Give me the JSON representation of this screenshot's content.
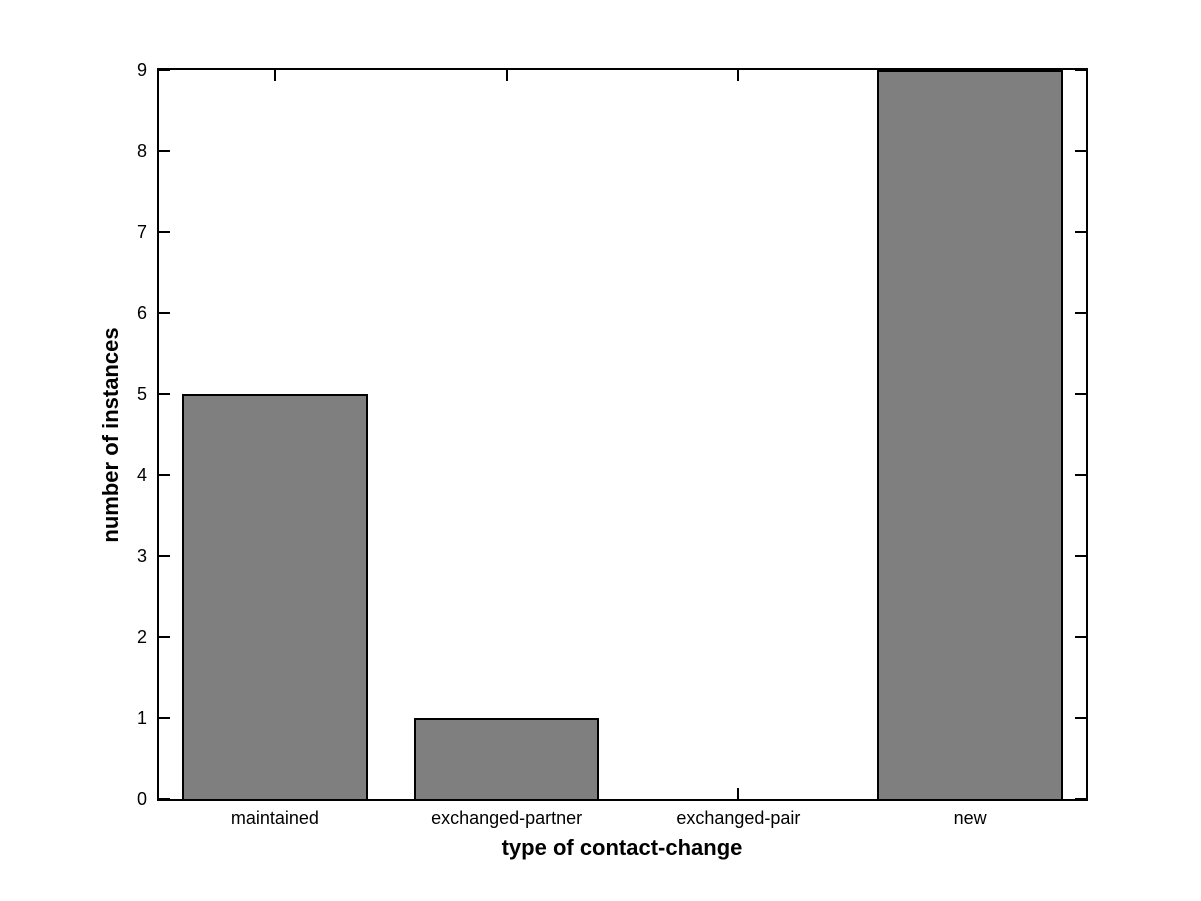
{
  "chart_data": {
    "type": "bar",
    "categories": [
      "maintained",
      "exchanged-partner",
      "exchanged-pair",
      "new"
    ],
    "values": [
      5,
      1,
      0,
      9
    ],
    "title": "",
    "xlabel": "type of contact-change",
    "ylabel": "number of instances",
    "ylim": [
      0,
      9
    ],
    "yticks": [
      0,
      1,
      2,
      3,
      4,
      5,
      6,
      7,
      8,
      9
    ],
    "bar_width_fraction": 0.8,
    "grid": false,
    "legend": null,
    "tick_direction": "in",
    "colors": {
      "bar_fill": "#7f7f7f",
      "bar_edge": "#000000",
      "axis": "#000000",
      "background": "#ffffff",
      "text": "#000000"
    }
  }
}
